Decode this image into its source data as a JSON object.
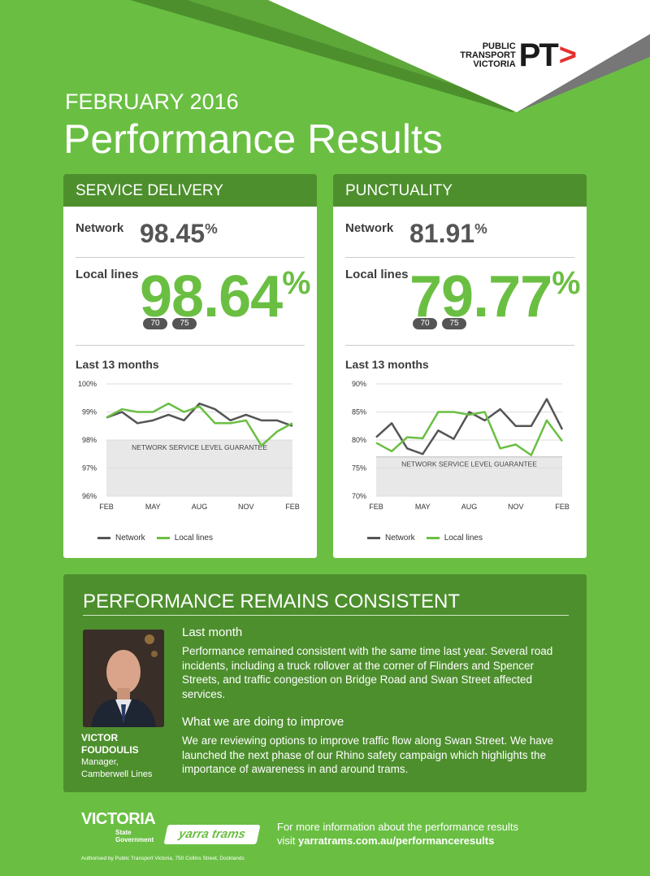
{
  "header": {
    "logo_lines": [
      "PUBLIC",
      "TRANSPORT",
      "VICTORIA"
    ],
    "logo_mark": "PT",
    "month": "FEBRUARY 2016",
    "title": "Performance Results"
  },
  "service_delivery": {
    "heading": "SERVICE DELIVERY",
    "network_label": "Network",
    "network_value": "98.45",
    "local_label": "Local lines",
    "local_value": "98.64",
    "percent": "%",
    "routes": [
      "70",
      "75"
    ],
    "chart_title": "Last 13 months"
  },
  "punctuality": {
    "heading": "PUNCTUALITY",
    "network_label": "Network",
    "network_value": "81.91",
    "local_label": "Local lines",
    "local_value": "79.77",
    "percent": "%",
    "routes": [
      "70",
      "75"
    ],
    "chart_title": "Last 13 months"
  },
  "chart_data": [
    {
      "type": "line",
      "title": "Last 13 months",
      "x_ticks": [
        "FEB",
        "MAY",
        "AUG",
        "NOV",
        "FEB"
      ],
      "y_ticks": [
        "100%",
        "99%",
        "98%",
        "97%",
        "96%"
      ],
      "ylim": [
        96,
        100
      ],
      "guarantee_level": 98,
      "guarantee_label": "NETWORK SERVICE LEVEL GUARANTEE",
      "series": [
        {
          "name": "Network",
          "color": "#555555",
          "values": [
            98.8,
            99.0,
            98.6,
            98.7,
            98.9,
            98.7,
            99.3,
            99.1,
            98.7,
            98.9,
            98.7,
            98.7,
            98.5
          ]
        },
        {
          "name": "Local lines",
          "color": "#6abf43",
          "values": [
            98.8,
            99.1,
            99.0,
            99.0,
            99.3,
            99.0,
            99.2,
            98.6,
            98.6,
            98.7,
            97.8,
            98.3,
            98.6
          ]
        }
      ]
    },
    {
      "type": "line",
      "title": "Last 13 months",
      "x_ticks": [
        "FEB",
        "MAY",
        "AUG",
        "NOV",
        "FEB"
      ],
      "y_ticks": [
        "90%",
        "85%",
        "80%",
        "75%",
        "70%"
      ],
      "ylim": [
        70,
        90
      ],
      "guarantee_level": 77,
      "guarantee_label": "NETWORK SERVICE LEVEL GUARANTEE",
      "series": [
        {
          "name": "Network",
          "color": "#555555",
          "values": [
            80.5,
            83.0,
            78.5,
            77.5,
            81.7,
            80.2,
            85.0,
            83.5,
            85.5,
            82.5,
            82.5,
            87.3,
            81.9
          ]
        },
        {
          "name": "Local lines",
          "color": "#6abf43",
          "values": [
            79.5,
            78.0,
            80.5,
            80.3,
            85.0,
            85.0,
            84.5,
            85.0,
            78.5,
            79.2,
            77.3,
            83.5,
            79.8
          ]
        }
      ]
    }
  ],
  "legend": {
    "network": "Network",
    "local": "Local lines"
  },
  "panel": {
    "title": "PERFORMANCE REMAINS CONSISTENT",
    "person_name_1": "VICTOR",
    "person_name_2": "FOUDOULIS",
    "person_role_1": "Manager,",
    "person_role_2": "Camberwell Lines",
    "last_month_heading": "Last month",
    "last_month_text": "Performance remained consistent with the same time last year. Several road incidents, including a truck rollover at the corner of Flinders and Spencer Streets, and traffic congestion on Bridge Road and Swan Street affected services.",
    "improve_heading": "What we are doing to improve",
    "improve_text": "We are reviewing options to improve traffic flow along Swan Street. We have launched the next phase of our Rhino safety campaign which highlights the importance of awareness in and around trams."
  },
  "footer": {
    "victoria_word": "VICTORIA",
    "victoria_sub_1": "State",
    "victoria_sub_2": "Government",
    "yarra": "yarra trams",
    "info_line_1": "For more information about the performance results",
    "info_line_2_prefix": "visit ",
    "info_url": "yarratrams.com.au/performanceresults",
    "authorised": "Authorised by Public Transport Victoria, 750 Collins Street, Docklands"
  }
}
